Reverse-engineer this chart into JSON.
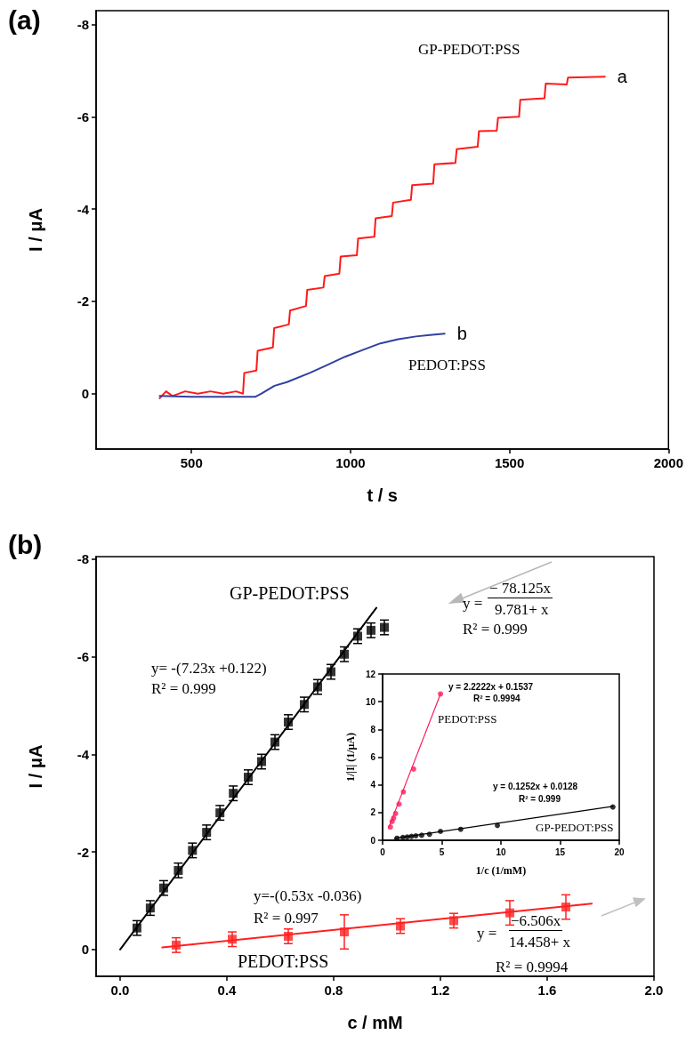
{
  "chart_data": [
    {
      "type": "line",
      "title": "(a)",
      "xlabel": "t / s",
      "ylabel": "I / μA",
      "xlim": [
        200,
        2000
      ],
      "xticks": [
        500,
        1000,
        1500,
        2000
      ],
      "ylim": [
        1.2,
        -8.3
      ],
      "yticks": [
        -8,
        -6,
        -4,
        -2,
        0
      ],
      "marker": "none",
      "annotations": [
        "GP-PEDOT:PSS",
        "PEDOT:PSS"
      ],
      "series": [
        {
          "name": "a",
          "color": "#ff1a1a",
          "x": [
            400,
            420,
            440,
            480,
            520,
            560,
            600,
            640,
            662,
            666,
            704,
            708,
            756,
            760,
            806,
            810,
            860,
            864,
            915,
            919,
            965,
            969,
            1020,
            1024,
            1075,
            1079,
            1130,
            1134,
            1190,
            1194,
            1260,
            1264,
            1330,
            1334,
            1400,
            1404,
            1460,
            1464,
            1530,
            1534,
            1610,
            1614,
            1680,
            1684,
            1800
          ],
          "values": [
            0.1,
            -0.05,
            0.05,
            -0.05,
            0,
            -0.05,
            0,
            -0.05,
            0,
            -0.45,
            -0.5,
            -0.93,
            -1.0,
            -1.42,
            -1.5,
            -1.8,
            -1.9,
            -2.25,
            -2.3,
            -2.55,
            -2.6,
            -2.97,
            -3.0,
            -3.36,
            -3.4,
            -3.8,
            -3.85,
            -4.14,
            -4.2,
            -4.52,
            -4.55,
            -4.97,
            -5.0,
            -5.3,
            -5.35,
            -5.69,
            -5.7,
            -5.98,
            -6.0,
            -6.37,
            -6.4,
            -6.72,
            -6.7,
            -6.85,
            -6.87
          ]
        },
        {
          "name": "b",
          "color": "#3040a0",
          "x": [
            400,
            500,
            600,
            700,
            720,
            761,
            800,
            872,
            920,
            983,
            1040,
            1094,
            1150,
            1206,
            1250,
            1296
          ],
          "values": [
            0.05,
            0.07,
            0.07,
            0.07,
            0,
            -0.17,
            -0.25,
            -0.45,
            -0.6,
            -0.8,
            -0.95,
            -1.09,
            -1.18,
            -1.24,
            -1.27,
            -1.3
          ]
        }
      ]
    },
    {
      "type": "scatter",
      "title": "(b)",
      "xlabel": "c / mM",
      "ylabel": "I / μA",
      "xlim": [
        -0.09,
        2.0
      ],
      "xticks": [
        {
          "value": 0,
          "label": "0.0"
        },
        0.4,
        0.8,
        1.2,
        1.6,
        {
          "value": 2,
          "label": "2.0"
        }
      ],
      "ylim": [
        0.55,
        -8.05
      ],
      "yticks": [
        -8,
        -6,
        -4,
        -2,
        0
      ],
      "marker": "square",
      "annotations": [
        "GP-PEDOT:PSS",
        "y= -(7.23x +0.122)",
        "R² = 0.999",
        "y=-(0.53x -0.036)",
        "R² = 0.997",
        "PEDOT:PSS",
        "y =",
        "− 78.125x",
        "9.781+ x",
        "R² = 0.999",
        "y =",
        "−6.506x",
        "14.458+ x",
        "R² = 0.9994"
      ],
      "series": [
        {
          "type": "line",
          "marker": "none",
          "color": "#000000",
          "x": [
            0,
            0.96
          ],
          "values": [
            0,
            -7.0
          ]
        },
        {
          "type": "line",
          "marker": "none",
          "color": "#ff2020",
          "x": [
            0.158,
            1.767
          ],
          "values": [
            -0.04,
            -0.94
          ]
        },
        {
          "color": "#000000",
          "x": [
            0.063,
            0.113,
            0.163,
            0.218,
            0.271,
            0.324,
            0.374,
            0.424,
            0.48,
            0.53,
            0.58,
            0.63,
            0.69,
            0.74,
            0.79,
            0.84,
            0.89,
            0.94,
            0.99
          ],
          "values": [
            -0.44,
            -0.85,
            -1.26,
            -1.62,
            -2.03,
            -2.4,
            -2.8,
            -3.2,
            -3.53,
            -3.85,
            -4.25,
            -4.66,
            -5.02,
            -5.38,
            -5.69,
            -6.05,
            -6.42,
            -6.54,
            -6.6
          ],
          "errors": [
            0.15,
            0.15,
            0.15,
            0.15,
            0.15,
            0.15,
            0.15,
            0.15,
            0.15,
            0.15,
            0.15,
            0.15,
            0.15,
            0.15,
            0.15,
            0.15,
            0.15,
            0.15,
            0.15
          ]
        },
        {
          "color": "#ff2020",
          "x": [
            0.21,
            0.42,
            0.63,
            0.84,
            1.05,
            1.25,
            1.46,
            1.67
          ],
          "values": [
            -0.09,
            -0.21,
            -0.27,
            -0.36,
            -0.48,
            -0.59,
            -0.75,
            -0.87
          ],
          "errors": [
            0.15,
            0.15,
            0.15,
            0.35,
            0.15,
            0.15,
            0.25,
            0.25
          ]
        }
      ]
    },
    {
      "type": "scatter",
      "xlabel": "1/c (1/mM)",
      "ylabel": "1/|I| (1/μA)",
      "xlim": [
        0,
        20
      ],
      "xticks": [
        0,
        5,
        10,
        15,
        20
      ],
      "ylim": [
        0,
        12
      ],
      "yticks": [
        0,
        2,
        4,
        6,
        8,
        10,
        12
      ],
      "marker": "circle",
      "annotations": [
        "y = 2.2222x + 0.1537",
        "R² = 0.9994",
        "PEDOT:PSS",
        "y = 0.1252x + 0.0128",
        "R² = 0.999",
        "GP-PEDOT:PSS"
      ],
      "series": [
        {
          "type": "line",
          "marker": "none",
          "color": "#ff1a5a",
          "x": [
            0.49,
            4.89
          ],
          "values": [
            0.86,
            10.56
          ]
        },
        {
          "type": "line",
          "marker": "none",
          "color": "#000000",
          "x": [
            1.0,
            19.46
          ],
          "values": [
            0.14,
            2.45
          ]
        },
        {
          "color": "#ff1a5a",
          "x": [
            0.66,
            0.8,
            0.93,
            1.1,
            1.39,
            1.76,
            2.62,
            4.89
          ],
          "values": [
            0.96,
            1.35,
            1.6,
            1.93,
            2.61,
            3.49,
            5.14,
            10.56
          ]
        },
        {
          "color": "#000000",
          "x": [
            1.22,
            1.71,
            2.08,
            2.44,
            2.81,
            3.3,
            3.96,
            4.89,
            6.6,
            9.7,
            19.46
          ],
          "values": [
            0.15,
            0.21,
            0.24,
            0.28,
            0.32,
            0.36,
            0.43,
            0.64,
            0.79,
            1.07,
            2.4
          ]
        }
      ]
    }
  ]
}
